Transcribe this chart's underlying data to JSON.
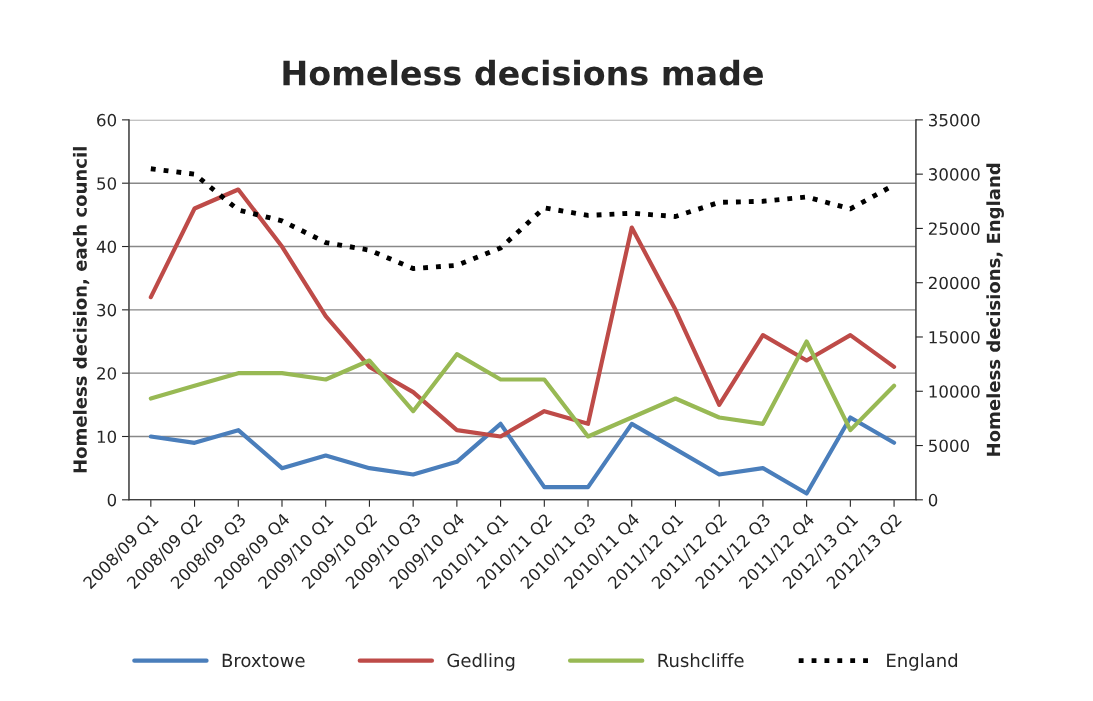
{
  "chart_data": {
    "type": "line",
    "title": "Homeless decisions made",
    "ylabel": "Homeless decision, each council",
    "y2label": "Homeless decisions, England",
    "categories": [
      "2008/09 Q1",
      "2008/09 Q2",
      "2008/09 Q3",
      "2008/09 Q4",
      "2009/10 Q1",
      "2009/10 Q2",
      "2009/10 Q3",
      "2009/10 Q4",
      "2010/11 Q1",
      "2010/11 Q2",
      "2010/11 Q3",
      "2010/11 Q4",
      "2011/12 Q1",
      "2011/12 Q2",
      "2011/12 Q3",
      "2011/12 Q4",
      "2012/13 Q1",
      "2012/13 Q2"
    ],
    "series": [
      {
        "name": "Broxtowe",
        "color": "#4a7ebb",
        "line_style": "solid",
        "values": [
          10,
          9,
          11,
          5,
          7,
          5,
          4,
          6,
          12,
          2,
          2,
          12,
          8,
          4,
          5,
          1,
          13,
          9
        ]
      },
      {
        "name": "Gedling",
        "color": "#be4b48",
        "line_style": "solid",
        "values": [
          32,
          46,
          49,
          40,
          29,
          21,
          17,
          11,
          10,
          14,
          12,
          43,
          30,
          15,
          26,
          22,
          26,
          21
        ]
      },
      {
        "name": "Rushcliffe",
        "color": "#98b954",
        "line_style": "solid",
        "values": [
          16,
          18,
          20,
          20,
          19,
          22,
          14,
          23,
          19,
          19,
          10,
          13,
          16,
          13,
          12,
          25,
          11,
          18
        ]
      },
      {
        "name": "England",
        "color": "#000000",
        "line_style": "dotted",
        "axis": "y2",
        "values": [
          30500,
          30000,
          26700,
          25700,
          23700,
          23000,
          21300,
          21600,
          23200,
          26900,
          26200,
          26400,
          26100,
          27400,
          27500,
          27900,
          26800,
          29000
        ]
      }
    ],
    "ylim": [
      0,
      60
    ],
    "yticks": [
      0,
      10,
      20,
      30,
      40,
      50,
      60
    ],
    "y2lim": [
      0,
      35000
    ],
    "y2ticks": [
      0,
      5000,
      10000,
      15000,
      20000,
      25000,
      30000,
      35000
    ],
    "grid": "y",
    "legend": "bottom"
  }
}
